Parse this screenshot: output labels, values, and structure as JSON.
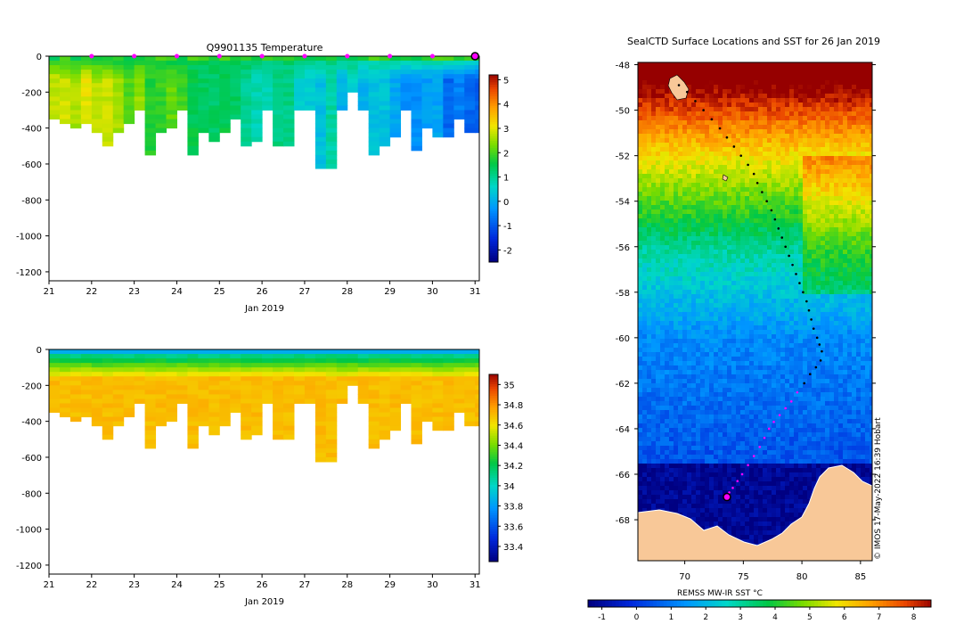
{
  "chart_data": [
    {
      "type": "heatmap",
      "title": "Q9901135  Temperature",
      "xlabel": "Jan 2019",
      "x_ticks": [
        "21",
        "22",
        "23",
        "24",
        "25",
        "26",
        "27",
        "28",
        "29",
        "30",
        "31"
      ],
      "xlim": [
        21,
        31.1
      ],
      "ylim": [
        -1250,
        0
      ],
      "y_ticks": [
        "0",
        "-200",
        "-400",
        "-600",
        "-800",
        "-1000",
        "-1200"
      ],
      "y_tick_values": [
        0,
        -200,
        -400,
        -600,
        -800,
        -1000,
        -1200
      ],
      "colorbar": {
        "min": -2.5,
        "max": 5.2,
        "ticks": [
          "-2",
          "-1",
          "0",
          "1",
          "2",
          "3",
          "4",
          "5"
        ],
        "tick_values": [
          -2,
          -1,
          0,
          1,
          2,
          3,
          4,
          5
        ]
      },
      "profile_times": [
        21.0,
        21.25,
        21.5,
        21.75,
        22.0,
        22.25,
        22.5,
        22.75,
        23.0,
        23.25,
        23.5,
        23.75,
        24.0,
        24.25,
        24.5,
        24.75,
        25.0,
        25.25,
        25.5,
        25.75,
        26.0,
        26.25,
        26.5,
        26.75,
        27.0,
        27.25,
        27.5,
        27.75,
        28.0,
        28.25,
        28.5,
        28.75,
        29.0,
        29.25,
        29.5,
        29.75,
        30.0,
        30.25,
        30.5,
        30.75,
        31.0
      ],
      "profile_max_depth": [
        330,
        370,
        380,
        370,
        420,
        480,
        410,
        360,
        300,
        550,
        420,
        380,
        300,
        530,
        410,
        470,
        410,
        340,
        500,
        470,
        300,
        480,
        480,
        300,
        290,
        620,
        620,
        300,
        200,
        290,
        540,
        480,
        430,
        300,
        510,
        400,
        430,
        440,
        330,
        420,
        410
      ],
      "marker_days": [
        22,
        23,
        24,
        25,
        26,
        27,
        28,
        29,
        30
      ],
      "current_marker_day": 31
    },
    {
      "type": "heatmap",
      "title": "",
      "xlabel": "Jan 2019",
      "x_ticks": [
        "21",
        "22",
        "23",
        "24",
        "25",
        "26",
        "27",
        "28",
        "29",
        "30",
        "31"
      ],
      "xlim": [
        21,
        31.1
      ],
      "ylim": [
        -1250,
        0
      ],
      "y_ticks": [
        "0",
        "-200",
        "-400",
        "-600",
        "-800",
        "-1000",
        "-1200"
      ],
      "y_tick_values": [
        0,
        -200,
        -400,
        -600,
        -800,
        -1000,
        -1200
      ],
      "colorbar": {
        "min": 33.25,
        "max": 35.1,
        "ticks": [
          "33.4",
          "33.6",
          "33.8",
          "34",
          "34.2",
          "34.4",
          "34.6",
          "34.8",
          "35"
        ],
        "tick_values": [
          33.4,
          33.6,
          33.8,
          34,
          34.2,
          34.4,
          34.6,
          34.8,
          35
        ]
      }
    },
    {
      "type": "scatter",
      "title": "SealCTD Surface Locations and SST for 26 Jan 2019",
      "x_ticks": [
        "70",
        "75",
        "80",
        "85"
      ],
      "x_tick_values": [
        70,
        75,
        80,
        85
      ],
      "y_ticks": [
        "-48",
        "-50",
        "-52",
        "-54",
        "-56",
        "-58",
        "-60",
        "-62",
        "-64",
        "-66",
        "-68"
      ],
      "y_tick_values": [
        -48,
        -50,
        -52,
        -54,
        -56,
        -58,
        -60,
        -62,
        -64,
        -66,
        -68
      ],
      "xlim": [
        66,
        86
      ],
      "ylim": [
        -69.8,
        -47.9
      ],
      "track_lon": [
        69.5,
        70.2,
        70.9,
        71.6,
        72.3,
        73.0,
        73.6,
        74.2,
        74.8,
        75.4,
        75.9,
        76.2,
        76.6,
        77.0,
        77.4,
        77.7,
        78.0,
        78.3,
        78.6,
        78.9,
        79.2,
        79.5,
        79.8,
        80.1,
        80.4,
        80.6,
        80.8,
        81.0,
        81.3,
        81.5,
        81.7,
        81.6,
        81.2,
        80.7,
        80.2,
        79.6,
        79.1,
        78.6,
        78.1,
        77.6,
        77.2,
        76.8,
        76.4,
        75.9,
        75.4,
        74.9,
        74.5,
        74.1,
        73.8,
        73.6
      ],
      "track_lat": [
        -48.9,
        -49.2,
        -49.6,
        -50.0,
        -50.4,
        -50.8,
        -51.2,
        -51.6,
        -52.0,
        -52.4,
        -52.8,
        -53.2,
        -53.6,
        -54.0,
        -54.4,
        -54.8,
        -55.2,
        -55.6,
        -56.0,
        -56.4,
        -56.8,
        -57.2,
        -57.6,
        -58.0,
        -58.4,
        -58.8,
        -59.2,
        -59.6,
        -60.0,
        -60.3,
        -60.6,
        -61.0,
        -61.3,
        -61.6,
        -62.0,
        -62.4,
        -62.8,
        -63.1,
        -63.4,
        -63.7,
        -64.0,
        -64.4,
        -64.8,
        -65.2,
        -65.6,
        -66.0,
        -66.3,
        -66.6,
        -66.8,
        -67.0
      ],
      "seal_lon": 73.6,
      "seal_lat": -67.0,
      "colorbar": {
        "label": "REMSS MW-IR SST °C",
        "min": -1.4,
        "max": 8.5,
        "ticks": [
          "-1",
          "0",
          "1",
          "2",
          "3",
          "4",
          "5",
          "6",
          "7",
          "8"
        ],
        "tick_values": [
          -1,
          0,
          1,
          2,
          3,
          4,
          5,
          6,
          7,
          8
        ]
      }
    }
  ],
  "credit": "© IMOS 17-May-2022 16:39 Hobart",
  "colors": {
    "land": "#f8c898",
    "ocean_deep": "#00008f",
    "marker": "#ff00ff"
  }
}
